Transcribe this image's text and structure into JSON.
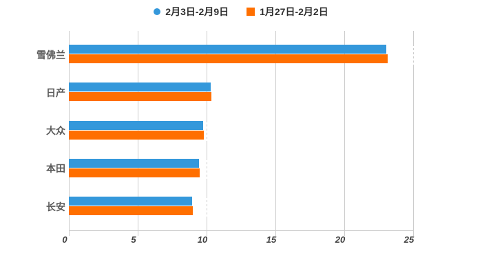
{
  "chart_data": {
    "type": "bar",
    "orientation": "horizontal",
    "title": "",
    "xlabel": "",
    "ylabel": "",
    "categories": [
      "雪佛兰",
      "日产",
      "大众",
      "本田",
      "长安"
    ],
    "series": [
      {
        "name": "2月3日-2月9日",
        "color": "#3498DB",
        "marker": "circle",
        "values": [
          23.05,
          10.3,
          9.75,
          9.45,
          8.95
        ]
      },
      {
        "name": "1月27日-2月2日",
        "color": "#FF6F00",
        "marker": "square",
        "values": [
          23.15,
          10.35,
          9.8,
          9.5,
          9.0
        ]
      }
    ],
    "xlim": [
      0,
      25
    ],
    "x_ticks": [
      0,
      5,
      10,
      15,
      20,
      25
    ],
    "x_tick_labels": [
      "0",
      "5",
      "10",
      "15",
      "20",
      "25"
    ],
    "grid": true,
    "gridline_color": "#cccccc",
    "legend_position": "top"
  },
  "legend": {
    "items": [
      {
        "label": "2月3日-2月9日",
        "color": "#3498DB",
        "shape": "circle"
      },
      {
        "label": "1月27日-2月2日",
        "color": "#FF6F00",
        "shape": "square"
      }
    ]
  },
  "colors": {
    "background": "#ffffff",
    "series_blue": "#3498DB",
    "series_orange": "#FF6F00",
    "grid": "#cccccc",
    "tick_text": "#3f3f3f",
    "category_text": "#5a5a5a",
    "legend_text": "#2e2e2e"
  }
}
